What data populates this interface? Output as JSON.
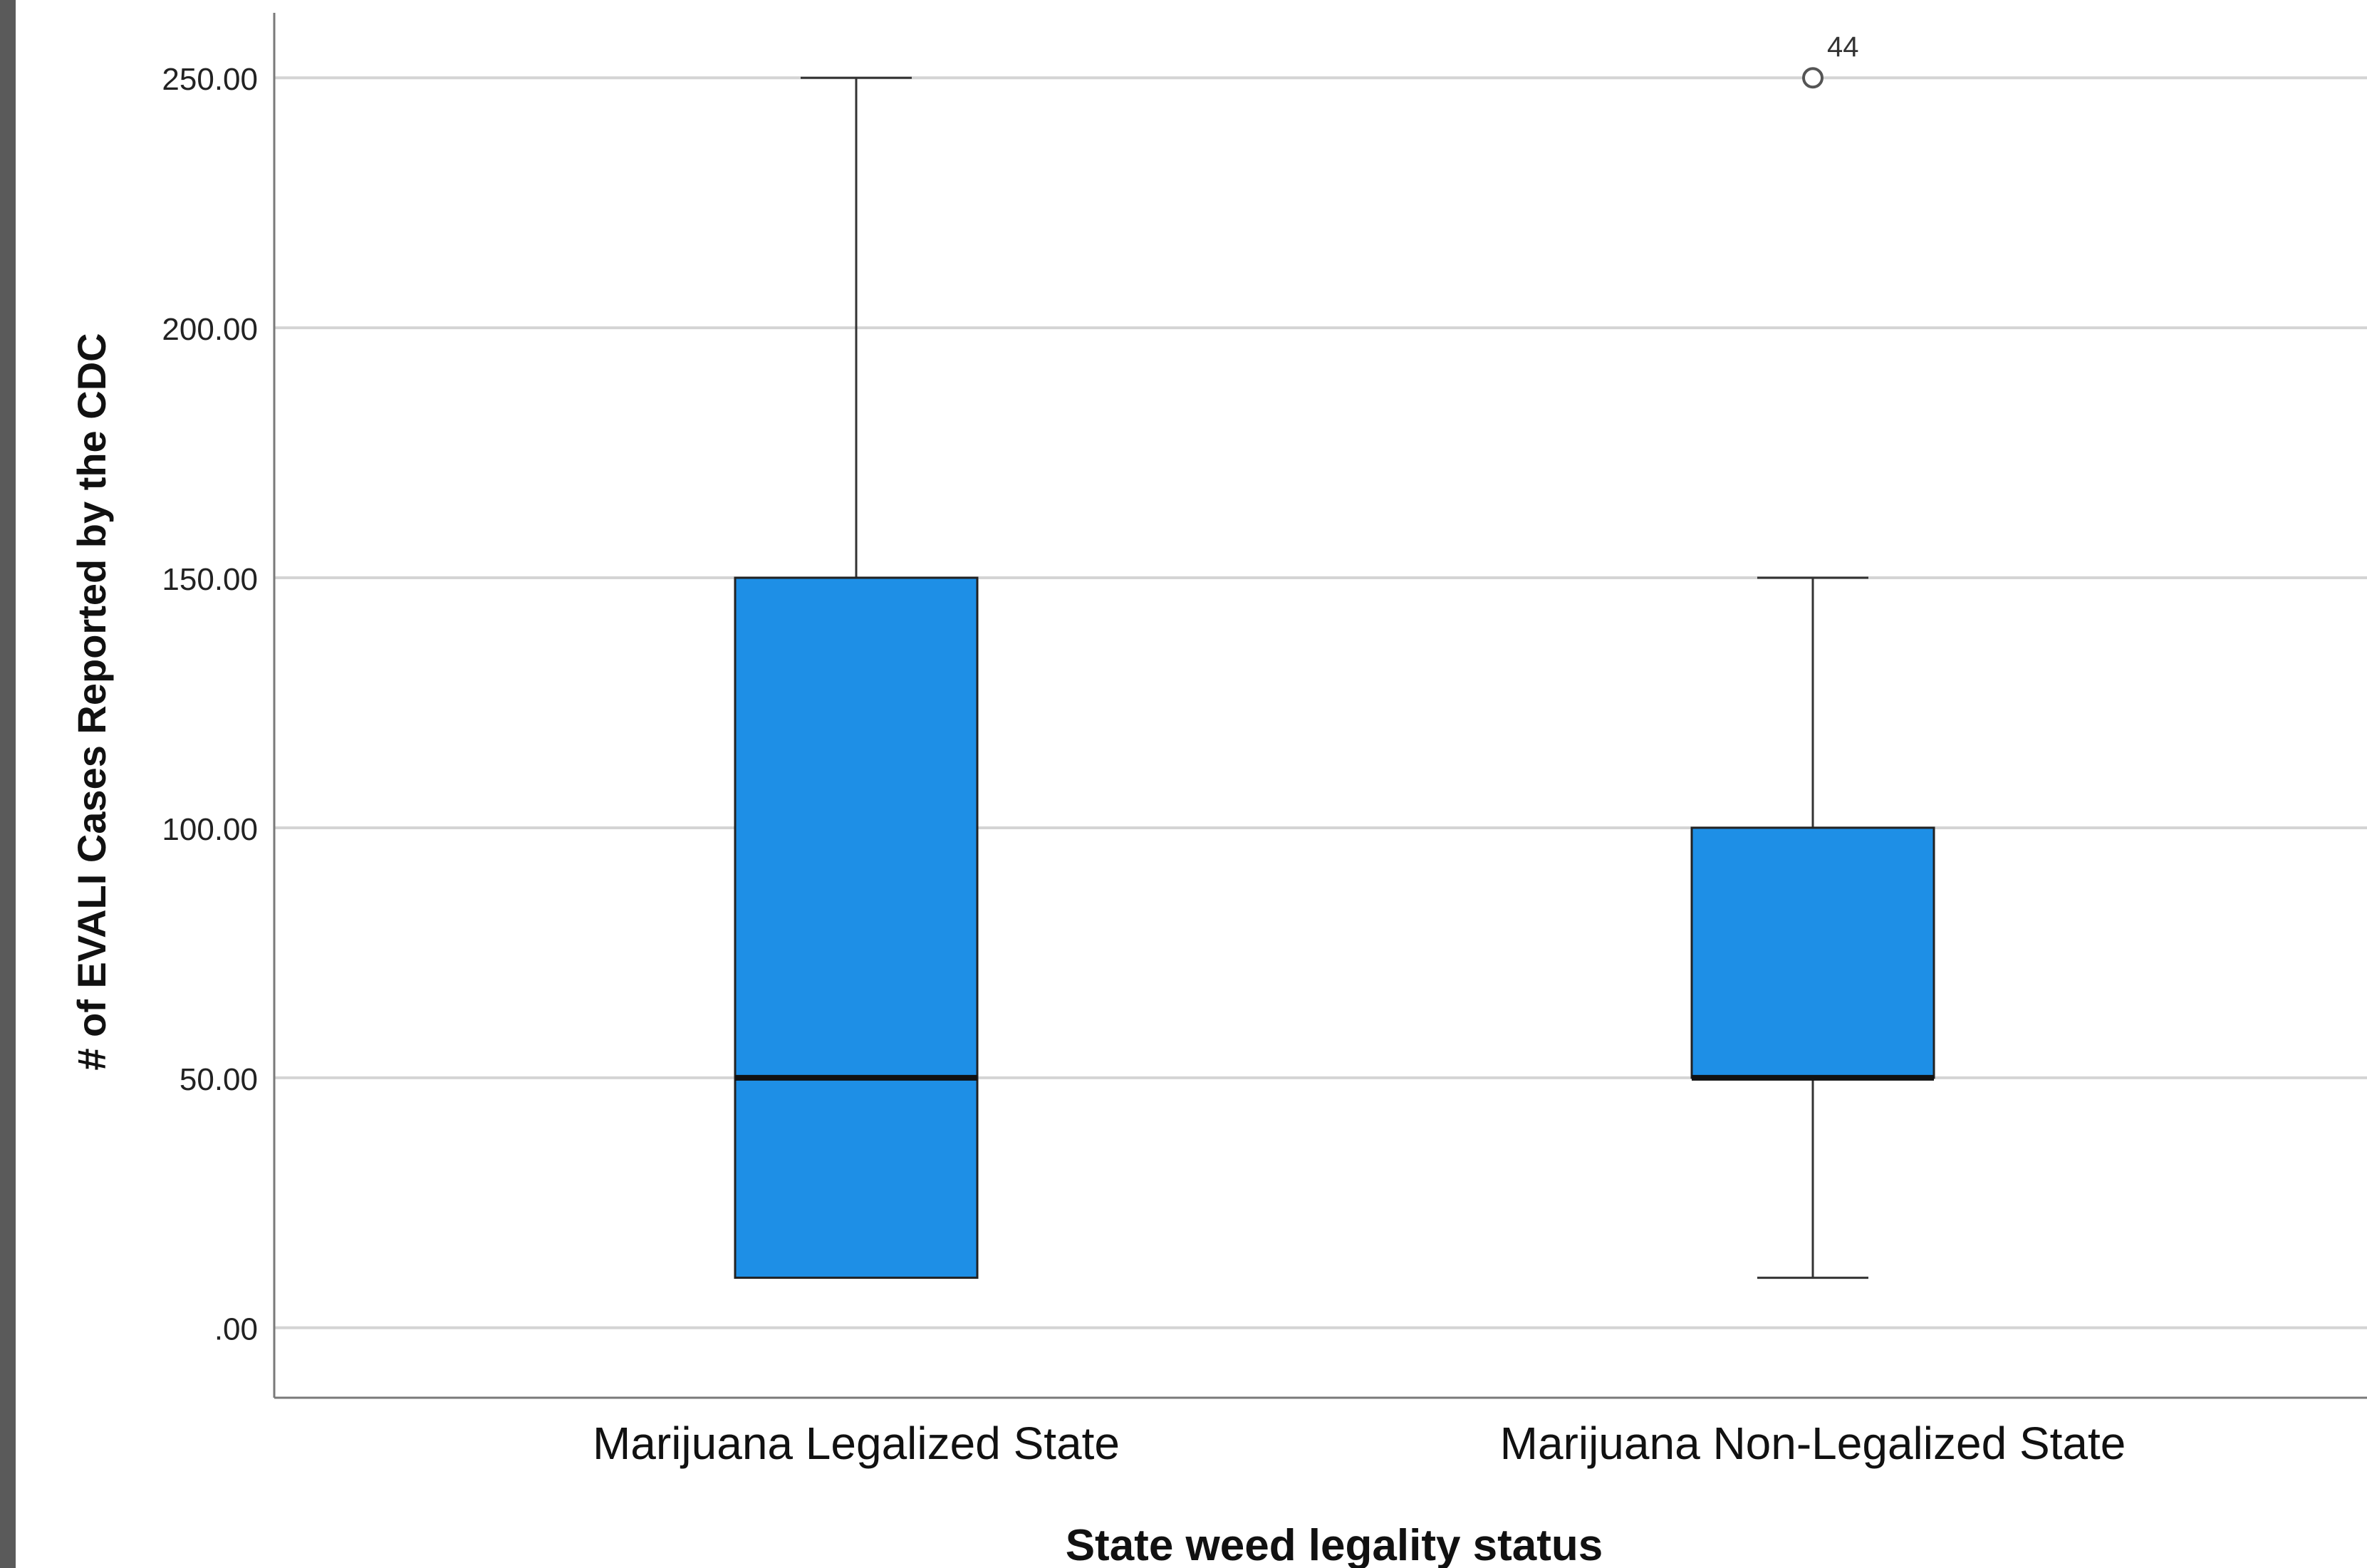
{
  "chart_data": {
    "type": "boxplot",
    "xlabel": "State weed legality status",
    "ylabel": "# of EVALI Cases Reported by the CDC",
    "ylim": [
      -14,
      263
    ],
    "y_ticks": [
      0,
      50,
      100,
      150,
      200,
      250
    ],
    "y_tick_labels": [
      ".00",
      "50.00",
      "100.00",
      "150.00",
      "200.00",
      "250.00"
    ],
    "grid": true,
    "box_color": "#1e8fe6",
    "categories": [
      "Marijuana Legalized State",
      "Marijuana Non-Legalized State"
    ],
    "boxes": [
      {
        "category": "Marijuana Legalized State",
        "whisker_low": 10,
        "q1": 10,
        "median": 50,
        "q3": 150,
        "whisker_high": 250,
        "outliers": []
      },
      {
        "category": "Marijuana Non-Legalized State",
        "whisker_low": 10,
        "q1": 50,
        "median": 50,
        "q3": 100,
        "whisker_high": 150,
        "outliers": [
          {
            "value": 250,
            "label": "44"
          }
        ]
      }
    ]
  }
}
